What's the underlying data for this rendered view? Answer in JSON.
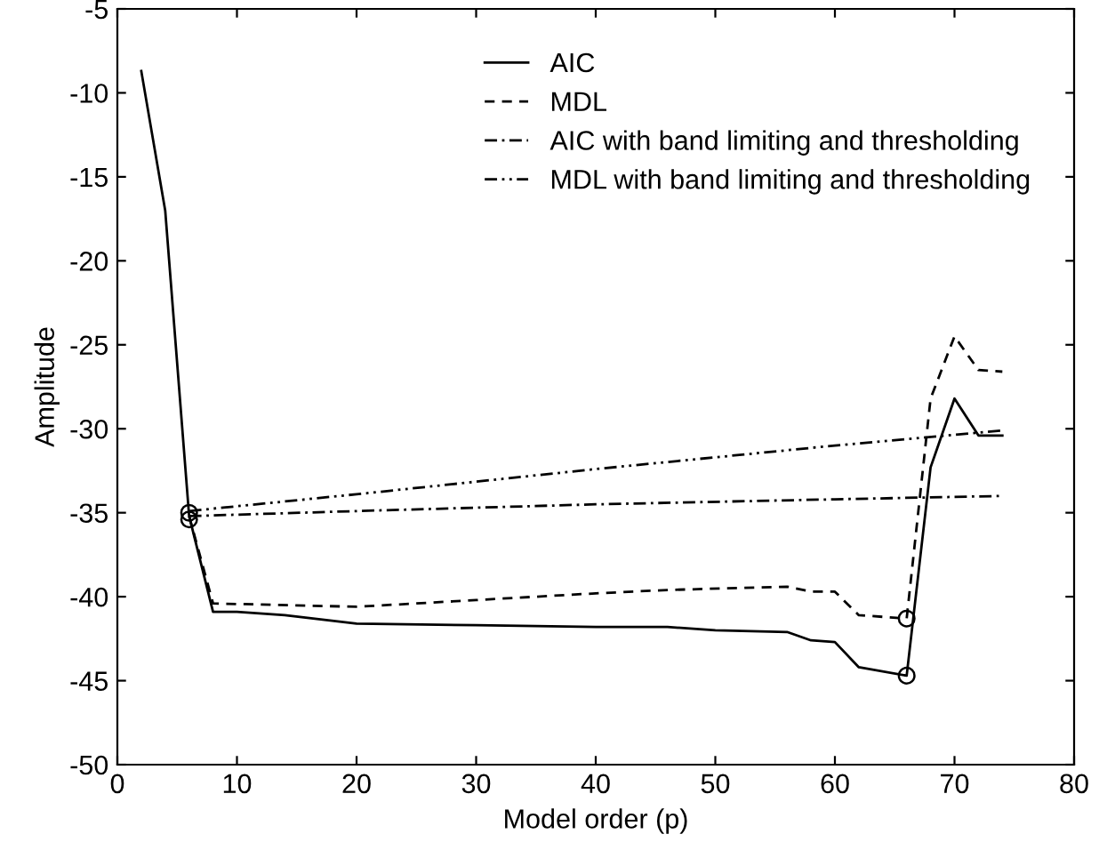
{
  "chart_data": {
    "type": "line",
    "xlabel": "Model order (p)",
    "ylabel": "Amplitude",
    "xlim": [
      0,
      80
    ],
    "ylim": [
      -50,
      -5
    ],
    "xticks": [
      0,
      10,
      20,
      30,
      40,
      50,
      60,
      70,
      80
    ],
    "yticks": [
      -50,
      -45,
      -40,
      -35,
      -30,
      -25,
      -20,
      -15,
      -10,
      -5
    ],
    "grid": false,
    "legend": "top right",
    "series": [
      {
        "name": "AIC",
        "color": "#000000",
        "line_style": "solid",
        "x": [
          2,
          4,
          6,
          8,
          10,
          14,
          20,
          30,
          40,
          46,
          50,
          56,
          58,
          60,
          62,
          66,
          68,
          70,
          72,
          74
        ],
        "values": [
          -8.7,
          -17,
          -35.2,
          -40.9,
          -40.9,
          -41.1,
          -41.6,
          -41.7,
          -41.8,
          -41.8,
          -42.0,
          -42.1,
          -42.6,
          -42.7,
          -44.2,
          -44.7,
          -32.3,
          -28.2,
          -30.4,
          -30.4
        ]
      },
      {
        "name": "MDL",
        "color": "#000000",
        "line_style": "dashed",
        "x": [
          6,
          8,
          20,
          30,
          40,
          46,
          56,
          58,
          60,
          62,
          66,
          68,
          70,
          72,
          74
        ],
        "values": [
          -35.2,
          -40.4,
          -40.6,
          -40.2,
          -39.8,
          -39.6,
          -39.4,
          -39.7,
          -39.7,
          -41.1,
          -41.3,
          -28.2,
          -24.5,
          -26.5,
          -26.6
        ]
      },
      {
        "name": "AIC with band limiting and thresholding",
        "color": "#000000",
        "line_style": "dashdot",
        "x": [
          6,
          20,
          40,
          60,
          74
        ],
        "values": [
          -35.2,
          -34.9,
          -34.5,
          -34.2,
          -34.0
        ]
      },
      {
        "name": "MDL with band limiting and thresholding",
        "color": "#000000",
        "line_style": "dashdotdot",
        "x": [
          6,
          20,
          40,
          60,
          74
        ],
        "values": [
          -34.9,
          -33.9,
          -32.4,
          -31.0,
          -30.1
        ]
      },
      {
        "type": "scatter",
        "color": "#000000",
        "marker": "circle",
        "x": [
          6,
          6,
          66,
          66
        ],
        "values": [
          -35.0,
          -35.4,
          -44.7,
          -41.3
        ]
      }
    ]
  }
}
